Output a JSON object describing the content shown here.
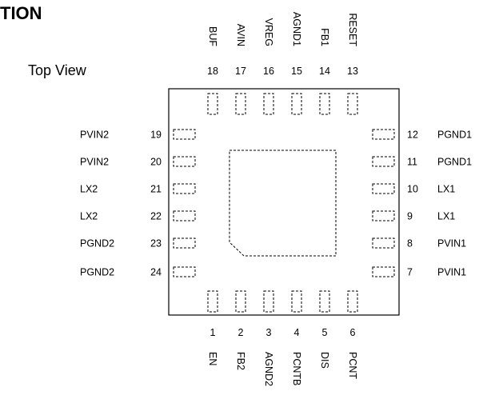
{
  "heading": "TION",
  "view_label": "Top View",
  "pins": {
    "top": [
      {
        "num": "18",
        "name": "BUF"
      },
      {
        "num": "17",
        "name": "AVIN"
      },
      {
        "num": "16",
        "name": "VREG"
      },
      {
        "num": "15",
        "name": "AGND1"
      },
      {
        "num": "14",
        "name": "FB1"
      },
      {
        "num": "13",
        "name": "RESET"
      }
    ],
    "bottom": [
      {
        "num": "1",
        "name": "EN"
      },
      {
        "num": "2",
        "name": "FB2"
      },
      {
        "num": "3",
        "name": "AGND2"
      },
      {
        "num": "4",
        "name": "PCNTB"
      },
      {
        "num": "5",
        "name": "DIS"
      },
      {
        "num": "6",
        "name": "PCNT"
      }
    ],
    "left": [
      {
        "num": "19",
        "name": "PVIN2"
      },
      {
        "num": "20",
        "name": "PVIN2"
      },
      {
        "num": "21",
        "name": "LX2"
      },
      {
        "num": "22",
        "name": "LX2"
      },
      {
        "num": "23",
        "name": "PGND2"
      },
      {
        "num": "24",
        "name": "PGND2"
      }
    ],
    "right": [
      {
        "num": "12",
        "name": "PGND1"
      },
      {
        "num": "11",
        "name": "PGND1"
      },
      {
        "num": "10",
        "name": "LX1"
      },
      {
        "num": "9",
        "name": "LX1"
      },
      {
        "num": "8",
        "name": "PVIN1"
      },
      {
        "num": "7",
        "name": "PVIN1"
      }
    ]
  }
}
